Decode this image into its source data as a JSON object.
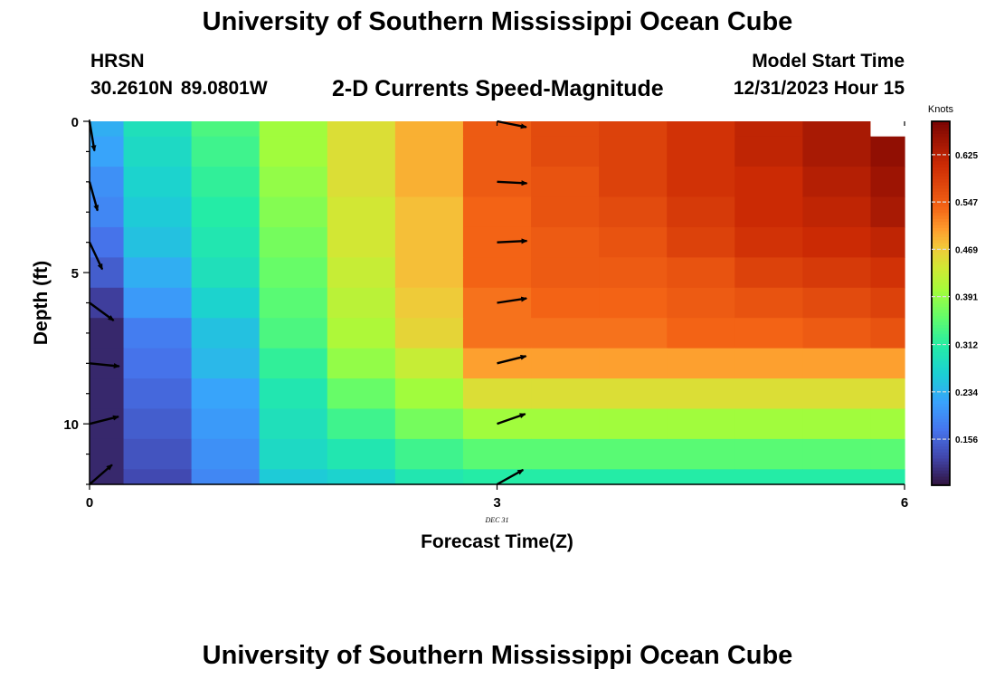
{
  "header": {
    "title": "University of Southern Mississippi Ocean Cube",
    "station": "HRSN",
    "coords": "30.2610N  89.0801W",
    "product": "2-D Currents Speed-Magnitude",
    "start_label": "Model Start Time",
    "start_value": "12/31/2023 Hour 15"
  },
  "footer": {
    "title": "University of Southern Mississippi Ocean Cube"
  },
  "chart_data": {
    "type": "heatmap",
    "title": "2-D Currents Speed-Magnitude",
    "xlabel": "Forecast Time(Z)",
    "ylabel": "Depth (ft)",
    "x_ticks": [
      "0",
      "3",
      "6"
    ],
    "x_tick_values": [
      0,
      3,
      6
    ],
    "x_date_label": "DEC  31",
    "y_ticks": [
      "0",
      "5",
      "10"
    ],
    "y_tick_values": [
      0,
      5,
      10
    ],
    "xlim": [
      0,
      6
    ],
    "ylim": [
      12,
      0
    ],
    "colorbar": {
      "label": "Knots",
      "ticks": [
        "0.156",
        "0.234",
        "0.312",
        "0.391",
        "0.469",
        "0.547",
        "0.625"
      ],
      "tick_values": [
        0.156,
        0.234,
        0.312,
        0.391,
        0.469,
        0.547,
        0.625
      ],
      "range": [
        0.08,
        0.68
      ]
    },
    "x_edges": [
      0,
      0.25,
      0.75,
      1.25,
      1.75,
      2.25,
      2.75,
      3.25,
      3.75,
      4.25,
      4.75,
      5.25,
      5.75,
      6
    ],
    "depth_edges": [
      0,
      0.5,
      1.5,
      2.5,
      3.5,
      4.5,
      5.5,
      6.5,
      7.5,
      8.5,
      9.5,
      10.5,
      11.5,
      12
    ],
    "speed_knots": [
      [
        0.23,
        0.29,
        0.34,
        0.4,
        0.45,
        0.49,
        0.55,
        0.57,
        0.58,
        0.6,
        0.62,
        0.64,
        null
      ],
      [
        0.22,
        0.28,
        0.33,
        0.4,
        0.45,
        0.49,
        0.55,
        0.57,
        0.58,
        0.6,
        0.62,
        0.64,
        0.66
      ],
      [
        0.2,
        0.27,
        0.32,
        0.39,
        0.45,
        0.49,
        0.55,
        0.56,
        0.58,
        0.6,
        0.61,
        0.63,
        0.65
      ],
      [
        0.19,
        0.26,
        0.31,
        0.38,
        0.44,
        0.48,
        0.54,
        0.56,
        0.57,
        0.59,
        0.61,
        0.62,
        0.64
      ],
      [
        0.17,
        0.25,
        0.3,
        0.37,
        0.44,
        0.48,
        0.54,
        0.55,
        0.56,
        0.58,
        0.6,
        0.61,
        0.62
      ],
      [
        0.15,
        0.23,
        0.29,
        0.36,
        0.43,
        0.48,
        0.54,
        0.55,
        0.55,
        0.56,
        0.58,
        0.59,
        0.6
      ],
      [
        0.12,
        0.21,
        0.27,
        0.35,
        0.42,
        0.47,
        0.53,
        0.54,
        0.54,
        0.55,
        0.56,
        0.57,
        0.58
      ],
      [
        0.1,
        0.18,
        0.25,
        0.34,
        0.41,
        0.46,
        0.53,
        0.53,
        0.53,
        0.54,
        0.54,
        0.55,
        0.56
      ],
      [
        0.1,
        0.17,
        0.24,
        0.32,
        0.39,
        0.43,
        0.5,
        0.5,
        0.5,
        0.5,
        0.5,
        0.5,
        0.5
      ],
      [
        0.1,
        0.16,
        0.22,
        0.3,
        0.36,
        0.4,
        0.45,
        0.45,
        0.45,
        0.45,
        0.45,
        0.45,
        0.45
      ],
      [
        0.1,
        0.15,
        0.21,
        0.29,
        0.33,
        0.37,
        0.4,
        0.4,
        0.4,
        0.4,
        0.4,
        0.4,
        0.4
      ],
      [
        0.1,
        0.14,
        0.2,
        0.28,
        0.3,
        0.33,
        0.35,
        0.35,
        0.35,
        0.35,
        0.35,
        0.35,
        0.35
      ],
      [
        0.1,
        0.13,
        0.19,
        0.26,
        0.27,
        0.3,
        0.31,
        0.31,
        0.31,
        0.31,
        0.31,
        0.31,
        0.31
      ]
    ],
    "vectors": [
      {
        "time": 0,
        "depth": 0,
        "u": 0.15,
        "v": -0.9
      },
      {
        "time": 0,
        "depth": 2,
        "u": 0.25,
        "v": -0.9
      },
      {
        "time": 0,
        "depth": 4,
        "u": 0.4,
        "v": -0.85
      },
      {
        "time": 0,
        "depth": 6,
        "u": 0.75,
        "v": -0.55
      },
      {
        "time": 0,
        "depth": 8,
        "u": 1.0,
        "v": -0.1
      },
      {
        "time": 0,
        "depth": 10,
        "u": 1.0,
        "v": 0.25
      },
      {
        "time": 0,
        "depth": 12,
        "u": 0.75,
        "v": 0.65
      },
      {
        "time": 3,
        "depth": 0,
        "u": 1.0,
        "v": -0.2
      },
      {
        "time": 3,
        "depth": 2,
        "u": 1.0,
        "v": -0.05
      },
      {
        "time": 3,
        "depth": 4,
        "u": 1.0,
        "v": 0.05
      },
      {
        "time": 3,
        "depth": 6,
        "u": 1.0,
        "v": 0.15
      },
      {
        "time": 3,
        "depth": 8,
        "u": 1.0,
        "v": 0.25
      },
      {
        "time": 3,
        "depth": 10,
        "u": 1.0,
        "v": 0.35
      },
      {
        "time": 3,
        "depth": 12,
        "u": 0.9,
        "v": 0.5
      }
    ]
  }
}
